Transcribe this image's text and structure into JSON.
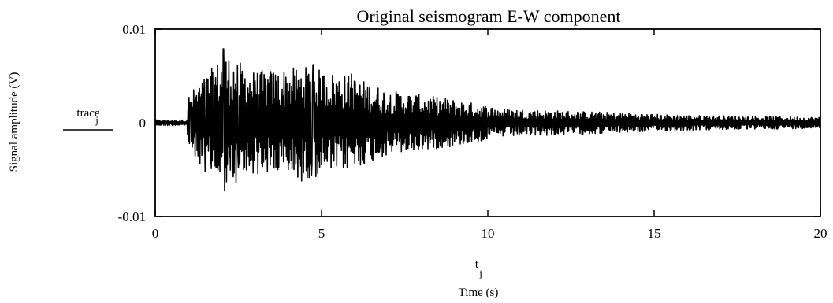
{
  "chart_data": {
    "type": "line",
    "title": "Original seismogram E-W component",
    "xlabel": "Time (s)",
    "ylabel": "Signal amplitude (V)",
    "y_var_main": "trace",
    "y_var_sub": "j",
    "x_var_main": "t",
    "x_var_sub": "j",
    "xlim": [
      0,
      20
    ],
    "ylim": [
      -0.01,
      0.01
    ],
    "x_ticks": [
      0,
      5,
      10,
      15,
      20
    ],
    "x_tick_labels": [
      "0",
      "5",
      "10",
      "15",
      "20"
    ],
    "y_ticks": [
      -0.01,
      0,
      0.01
    ],
    "y_tick_labels": [
      "-0.01",
      "0",
      "0.01"
    ],
    "grid": false,
    "line_color": "#000000",
    "envelope": {
      "description_points": [
        {
          "t": 0.0,
          "amp": 0.0003
        },
        {
          "t": 0.95,
          "amp": 0.0003
        },
        {
          "t": 1.0,
          "amp": 0.003
        },
        {
          "t": 1.5,
          "amp": 0.005
        },
        {
          "t": 2.1,
          "amp": 0.0075
        },
        {
          "t": 3.0,
          "amp": 0.0055
        },
        {
          "t": 4.5,
          "amp": 0.006
        },
        {
          "t": 5.9,
          "amp": 0.005
        },
        {
          "t": 7.0,
          "amp": 0.0035
        },
        {
          "t": 9.0,
          "amp": 0.0025
        },
        {
          "t": 10.5,
          "amp": 0.0015
        },
        {
          "t": 13.0,
          "amp": 0.0012
        },
        {
          "t": 16.0,
          "amp": 0.0008
        },
        {
          "t": 20.0,
          "amp": 0.0006
        }
      ],
      "peaks": [
        {
          "t": 1.05,
          "v": 0.0022
        },
        {
          "t": 1.5,
          "v": -0.0052
        },
        {
          "t": 2.05,
          "v": 0.0079
        },
        {
          "t": 2.5,
          "v": -0.0048
        },
        {
          "t": 3.0,
          "v": 0.0045
        },
        {
          "t": 4.4,
          "v": -0.0062
        },
        {
          "t": 4.75,
          "v": 0.0062
        },
        {
          "t": 4.7,
          "v": -0.0056
        },
        {
          "t": 5.9,
          "v": 0.0052
        },
        {
          "t": 6.0,
          "v": -0.0043
        }
      ]
    }
  }
}
